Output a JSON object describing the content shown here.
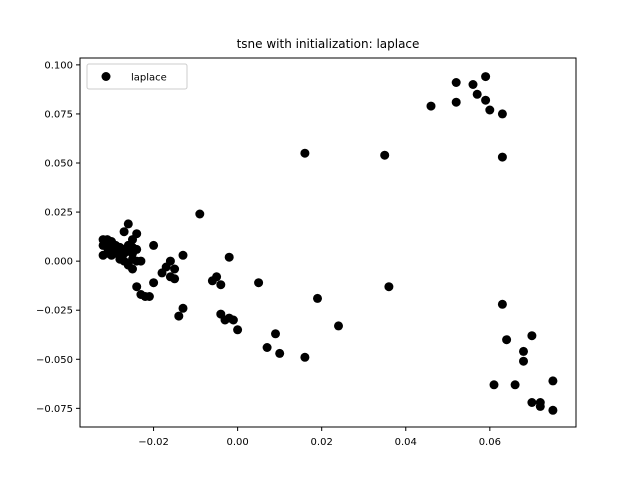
{
  "chart_data": {
    "type": "scatter",
    "title": "tsne with initialization: laplace",
    "xlabel": "",
    "ylabel": "",
    "xlim": [
      -0.0375,
      0.0805
    ],
    "ylim": [
      -0.0845,
      0.1035
    ],
    "xticks": [
      -0.02,
      0.0,
      0.02,
      0.04,
      0.06
    ],
    "xtick_labels": [
      "−0.02",
      "0.00",
      "0.02",
      "0.04",
      "0.06"
    ],
    "yticks": [
      -0.075,
      -0.05,
      -0.025,
      0.0,
      0.025,
      0.05,
      0.075,
      0.1
    ],
    "ytick_labels": [
      "−0.075",
      "−0.050",
      "−0.025",
      "0.000",
      "0.025",
      "0.050",
      "0.075",
      "0.100"
    ],
    "grid": false,
    "legend": {
      "position": "top-left",
      "entries": [
        "laplace"
      ]
    },
    "series": [
      {
        "name": "laplace",
        "color": "#000000",
        "marker": "circle",
        "points": [
          [
            -0.032,
            0.011
          ],
          [
            -0.031,
            0.011
          ],
          [
            -0.03,
            0.01
          ],
          [
            -0.032,
            0.008
          ],
          [
            -0.031,
            0.007
          ],
          [
            -0.03,
            0.006
          ],
          [
            -0.029,
            0.008
          ],
          [
            -0.028,
            0.007
          ],
          [
            -0.027,
            0.006
          ],
          [
            -0.026,
            0.008
          ],
          [
            -0.025,
            0.007
          ],
          [
            -0.024,
            0.006
          ],
          [
            -0.031,
            0.004
          ],
          [
            -0.03,
            0.003
          ],
          [
            -0.029,
            0.004
          ],
          [
            -0.028,
            0.003
          ],
          [
            -0.027,
            0.004
          ],
          [
            -0.026,
            0.005
          ],
          [
            -0.025,
            0.004
          ],
          [
            -0.028,
            0.001
          ],
          [
            -0.027,
            0.0
          ],
          [
            -0.026,
            -0.002
          ],
          [
            -0.025,
            -0.004
          ],
          [
            -0.024,
            0.0
          ],
          [
            -0.023,
            0.0
          ],
          [
            -0.027,
            0.015
          ],
          [
            -0.026,
            0.019
          ],
          [
            -0.025,
            0.011
          ],
          [
            -0.024,
            0.014
          ],
          [
            -0.032,
            0.003
          ],
          [
            -0.025,
            0.001
          ],
          [
            -0.024,
            -0.013
          ],
          [
            -0.023,
            -0.017
          ],
          [
            -0.022,
            -0.018
          ],
          [
            -0.021,
            -0.018
          ],
          [
            -0.02,
            -0.011
          ],
          [
            -0.02,
            0.008
          ],
          [
            -0.018,
            -0.006
          ],
          [
            -0.017,
            -0.003
          ],
          [
            -0.016,
            0.0
          ],
          [
            -0.016,
            -0.008
          ],
          [
            -0.015,
            -0.009
          ],
          [
            -0.015,
            -0.004
          ],
          [
            -0.014,
            -0.028
          ],
          [
            -0.013,
            -0.024
          ],
          [
            -0.013,
            0.003
          ],
          [
            -0.009,
            0.024
          ],
          [
            -0.006,
            -0.01
          ],
          [
            -0.005,
            -0.008
          ],
          [
            -0.004,
            -0.012
          ],
          [
            -0.004,
            -0.027
          ],
          [
            -0.003,
            -0.03
          ],
          [
            -0.002,
            0.002
          ],
          [
            -0.002,
            -0.029
          ],
          [
            -0.001,
            -0.03
          ],
          [
            0.0,
            -0.035
          ],
          [
            0.005,
            -0.011
          ],
          [
            0.007,
            -0.044
          ],
          [
            0.009,
            -0.037
          ],
          [
            0.01,
            -0.047
          ],
          [
            0.016,
            0.055
          ],
          [
            0.016,
            -0.049
          ],
          [
            0.019,
            -0.019
          ],
          [
            0.024,
            -0.033
          ],
          [
            0.035,
            0.054
          ],
          [
            0.036,
            -0.013
          ],
          [
            0.046,
            0.079
          ],
          [
            0.052,
            0.081
          ],
          [
            0.052,
            0.091
          ],
          [
            0.056,
            0.09
          ],
          [
            0.057,
            0.085
          ],
          [
            0.059,
            0.094
          ],
          [
            0.059,
            0.082
          ],
          [
            0.06,
            0.077
          ],
          [
            0.063,
            0.075
          ],
          [
            0.063,
            0.053
          ],
          [
            0.061,
            -0.063
          ],
          [
            0.063,
            -0.022
          ],
          [
            0.064,
            -0.04
          ],
          [
            0.066,
            -0.063
          ],
          [
            0.068,
            -0.046
          ],
          [
            0.068,
            -0.051
          ],
          [
            0.07,
            -0.038
          ],
          [
            0.07,
            -0.072
          ],
          [
            0.072,
            -0.072
          ],
          [
            0.072,
            -0.074
          ],
          [
            0.075,
            -0.061
          ],
          [
            0.075,
            -0.076
          ]
        ]
      }
    ]
  }
}
